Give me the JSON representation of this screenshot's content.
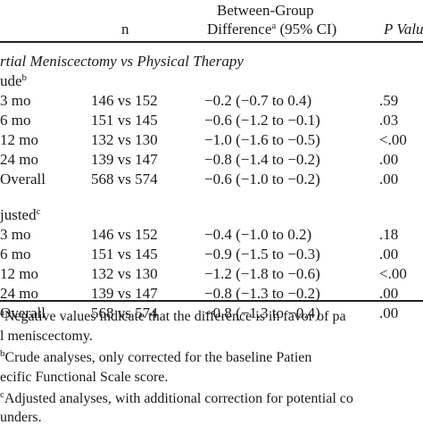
{
  "header": {
    "col_n": "n",
    "col_diff_line1": "Between-Group",
    "col_diff_line2": "Difference",
    "col_diff_sup": "a",
    "col_diff_tail": " (95% CI)",
    "col_p": "P Valu"
  },
  "section_title": "rtial Meniscectomy vs Physical Therapy",
  "crude": {
    "label": "ude",
    "sup": "b",
    "rows": [
      {
        "label": "3 mo",
        "n": "146 vs 152",
        "diff": "−0.2 (−0.7 to 0.4)",
        "p": ".59"
      },
      {
        "label": "6 mo",
        "n": "151 vs 145",
        "diff": "−0.6 (−1.2 to −0.1)",
        "p": ".03"
      },
      {
        "label": "12 mo",
        "n": "132 vs 130",
        "diff": "−1.0 (−1.6 to −0.5)",
        "p": "<.00"
      },
      {
        "label": "24 mo",
        "n": "139 vs 147",
        "diff": "−0.8 (−1.4 to −0.2)",
        "p": ".00"
      },
      {
        "label": "Overall",
        "n": "568 vs 574",
        "diff": "−0.6 (−1.0 to −0.2)",
        "p": ".00"
      }
    ]
  },
  "adjusted": {
    "label": "justed",
    "sup": "c",
    "rows": [
      {
        "label": "3 mo",
        "n": "146 vs 152",
        "diff": "−0.4 (−1.0 to 0.2)",
        "p": ".18"
      },
      {
        "label": "6 mo",
        "n": "151 vs 145",
        "diff": "−0.9 (−1.5 to −0.3)",
        "p": ".00"
      },
      {
        "label": "12 mo",
        "n": "132 vs 130",
        "diff": "−1.2 (−1.8 to −0.6)",
        "p": "<.00"
      },
      {
        "label": "24 mo",
        "n": "139 vs 147",
        "diff": "−0.8 (−1.3 to −0.2)",
        "p": ".00"
      },
      {
        "label": "Overall",
        "n": "568 vs 574",
        "diff": "−0.8 (−1.3 to −0.4)",
        "p": ".00"
      }
    ]
  },
  "footnotes": {
    "a_sup": "a",
    "a_line1": "Negative values indicate that the difference is in favor of pa",
    "a_line2": "l meniscectomy.",
    "b_sup": "b",
    "b_line1": "Crude analyses, only corrected for the baseline Patien",
    "b_line2": "ecific Functional Scale score.",
    "c_sup": "c",
    "c_line1": "Adjusted analyses, with additional correction for potential co",
    "c_line2": "unders."
  }
}
